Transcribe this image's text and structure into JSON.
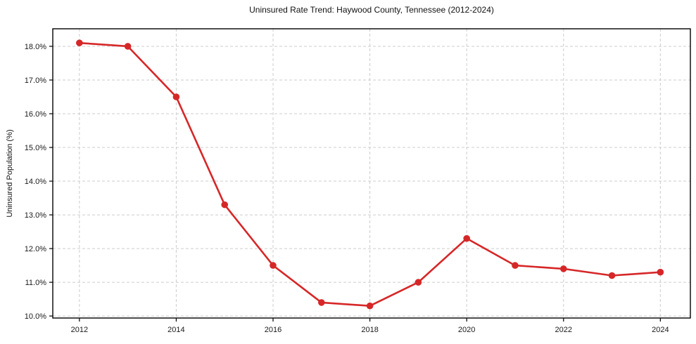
{
  "chart": {
    "title": "Uninsured Rate Trend: Haywood County, Tennessee (2012-2024)",
    "ylabel": "Uninsured Population (%)"
  },
  "chart_data": {
    "type": "line",
    "title": "Uninsured Rate Trend: Haywood County, Tennessee (2012-2024)",
    "xlabel": "",
    "ylabel": "Uninsured Population (%)",
    "x": [
      2012,
      2013,
      2014,
      2015,
      2016,
      2017,
      2018,
      2019,
      2020,
      2021,
      2022,
      2023,
      2024
    ],
    "series": [
      {
        "name": "Uninsured Rate",
        "values": [
          18.1,
          18.0,
          16.5,
          13.3,
          11.5,
          10.4,
          10.3,
          11.0,
          12.3,
          11.5,
          11.4,
          11.2,
          11.3
        ]
      }
    ],
    "x_ticks": [
      2012,
      2014,
      2016,
      2018,
      2020,
      2022,
      2024
    ],
    "x_tick_labels": [
      "2012",
      "2014",
      "2016",
      "2018",
      "2020",
      "2022",
      "2024"
    ],
    "y_ticks": [
      10,
      11,
      12,
      13,
      14,
      15,
      16,
      17,
      18
    ],
    "y_tick_labels": [
      "10.0%",
      "11.0%",
      "12.0%",
      "13.0%",
      "14.0%",
      "15.0%",
      "16.0%",
      "17.0%",
      "18.0%"
    ],
    "xlim": [
      2011.45,
      2024.62
    ],
    "ylim": [
      9.94,
      18.52
    ],
    "grid": true,
    "legend": null,
    "line_color": "#d62728",
    "marker": "circle",
    "grid_color": "#cccccc",
    "axis_color": "#000000",
    "text_color": "#1a1a1a",
    "background": "#ffffff"
  }
}
